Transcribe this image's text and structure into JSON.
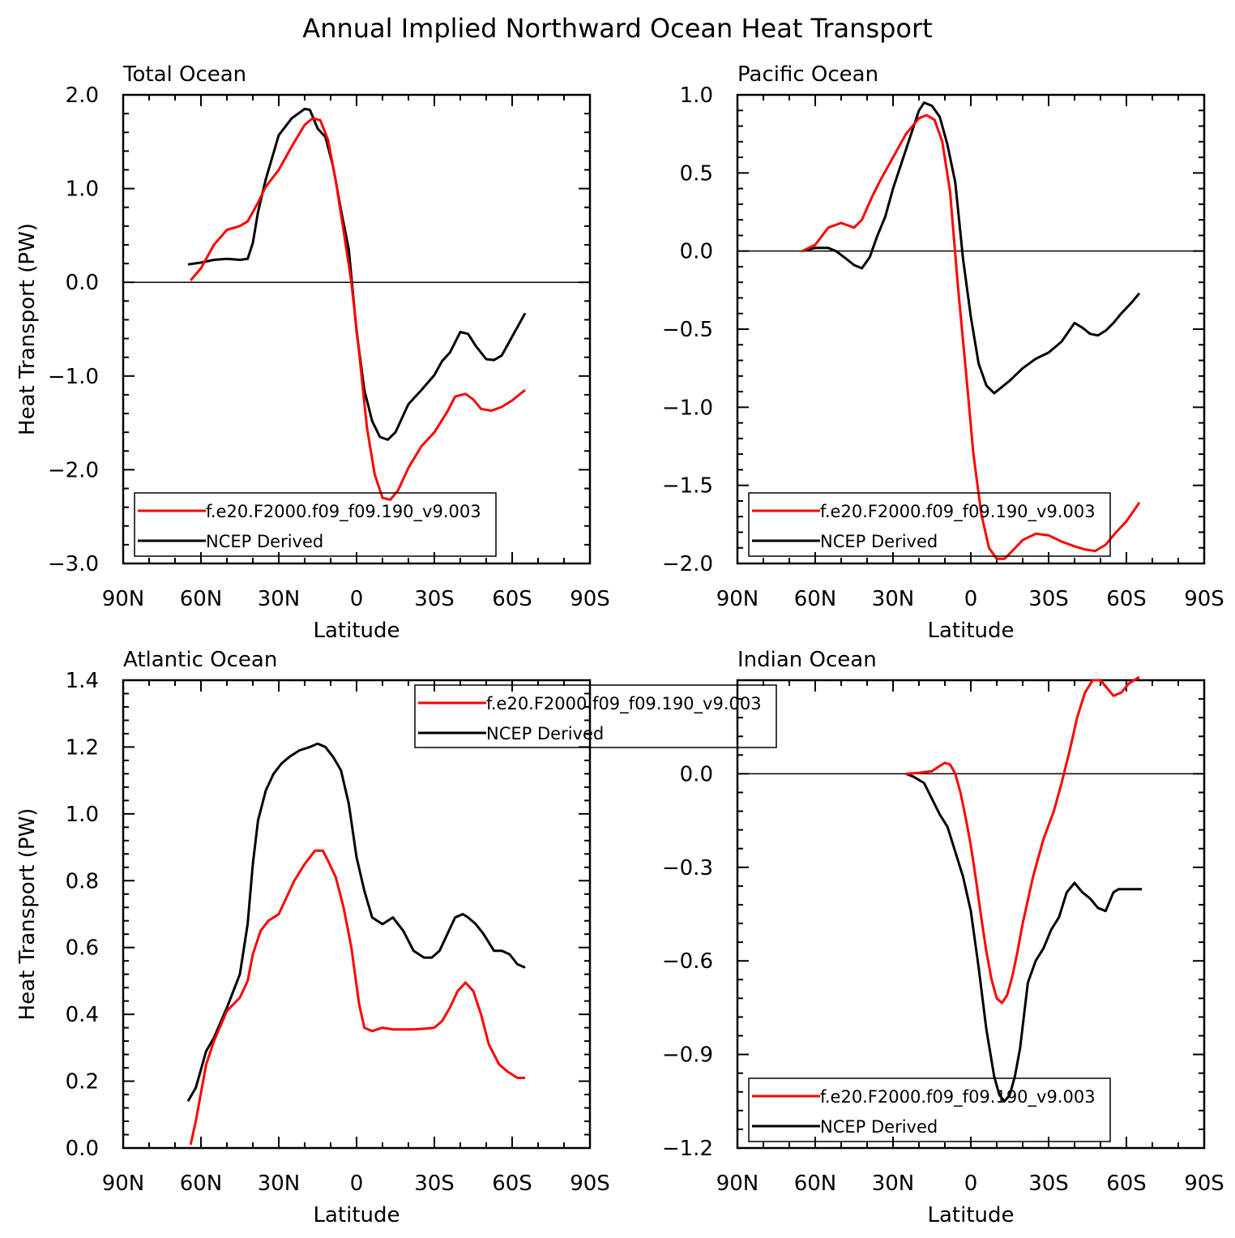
{
  "figure_title": "Annual Implied Northward Ocean Heat Transport",
  "colors": {
    "model": "#ff0000",
    "obs": "#000000"
  },
  "chart_data": [
    {
      "type": "line",
      "title": "Total Ocean",
      "xlabel": "Latitude",
      "ylabel": "Heat Transport (PW)",
      "xlim": [
        -90,
        90
      ],
      "ylim": [
        -3.0,
        2.0
      ],
      "x_tick_values": [
        -90,
        -60,
        -30,
        0,
        30,
        60,
        90
      ],
      "x_tick_labels": [
        "90N",
        "60N",
        "30N",
        "0",
        "30S",
        "60S",
        "90S"
      ],
      "y_tick_values": [
        -3.0,
        -2.0,
        -1.0,
        0.0,
        1.0,
        2.0
      ],
      "y_tick_labels": [
        "−3.0",
        "−2.0",
        "−1.0",
        "0.0",
        "1.0",
        "2.0"
      ],
      "zero_line": true,
      "legend": "bottom-left",
      "series": [
        {
          "name": "f.e20.F2000.f09_f09.190_v9.003",
          "color": "#ff0000",
          "x": [
            -64,
            -60,
            -55,
            -50,
            -45,
            -42,
            -38,
            -35,
            -30,
            -25,
            -20,
            -17,
            -14,
            -11,
            -8,
            -5,
            -2,
            1,
            4,
            7,
            10,
            13,
            16,
            20,
            25,
            30,
            35,
            38,
            42,
            45,
            48,
            52,
            56,
            60,
            65
          ],
          "y": [
            0.02,
            0.15,
            0.4,
            0.56,
            0.6,
            0.65,
            0.85,
            1.02,
            1.2,
            1.45,
            1.68,
            1.75,
            1.73,
            1.52,
            1.08,
            0.55,
            0.0,
            -0.75,
            -1.55,
            -2.05,
            -2.3,
            -2.32,
            -2.22,
            -1.98,
            -1.75,
            -1.6,
            -1.38,
            -1.22,
            -1.19,
            -1.25,
            -1.35,
            -1.37,
            -1.33,
            -1.26,
            -1.15
          ]
        },
        {
          "name": "NCEP Derived",
          "color": "#000000",
          "x": [
            -65,
            -60,
            -55,
            -50,
            -45,
            -42,
            -40,
            -38,
            -35,
            -30,
            -25,
            -20,
            -18,
            -15,
            -12,
            -9,
            -6,
            -3,
            0,
            3,
            6,
            9,
            12,
            15,
            20,
            25,
            30,
            33,
            36,
            40,
            43,
            46,
            50,
            53,
            56,
            59,
            62,
            65
          ],
          "y": [
            0.19,
            0.21,
            0.24,
            0.25,
            0.24,
            0.25,
            0.42,
            0.75,
            1.1,
            1.57,
            1.75,
            1.85,
            1.84,
            1.64,
            1.55,
            1.23,
            0.77,
            0.35,
            -0.52,
            -1.15,
            -1.48,
            -1.65,
            -1.68,
            -1.6,
            -1.3,
            -1.15,
            -0.99,
            -0.84,
            -0.75,
            -0.53,
            -0.55,
            -0.68,
            -0.82,
            -0.83,
            -0.78,
            -0.63,
            -0.48,
            -0.33
          ]
        }
      ]
    },
    {
      "type": "line",
      "title": "Pacific Ocean",
      "xlabel": "Latitude",
      "ylabel": "",
      "xlim": [
        -90,
        90
      ],
      "ylim": [
        -2.0,
        1.0
      ],
      "x_tick_values": [
        -90,
        -60,
        -30,
        0,
        30,
        60,
        90
      ],
      "x_tick_labels": [
        "90N",
        "60N",
        "30N",
        "0",
        "30S",
        "60S",
        "90S"
      ],
      "y_tick_values": [
        -2.0,
        -1.5,
        -1.0,
        -0.5,
        0.0,
        0.5,
        1.0
      ],
      "y_tick_labels": [
        "−2.0",
        "−1.5",
        "−1.0",
        "−0.5",
        "0.0",
        "0.5",
        "1.0"
      ],
      "zero_line": true,
      "legend": "bottom-left",
      "series": [
        {
          "name": "f.e20.F2000.f09_f09.190_v9.003",
          "color": "#ff0000",
          "x": [
            -65,
            -60,
            -55,
            -50,
            -45,
            -42,
            -38,
            -35,
            -30,
            -25,
            -20,
            -17,
            -14,
            -11,
            -8,
            -5,
            -2,
            1,
            4,
            7,
            10,
            13,
            16,
            20,
            25,
            30,
            35,
            40,
            44,
            48,
            52,
            56,
            60,
            65
          ],
          "y": [
            0.0,
            0.04,
            0.15,
            0.18,
            0.15,
            0.2,
            0.35,
            0.45,
            0.6,
            0.75,
            0.85,
            0.87,
            0.84,
            0.7,
            0.38,
            -0.22,
            -0.75,
            -1.3,
            -1.68,
            -1.9,
            -1.97,
            -1.97,
            -1.92,
            -1.85,
            -1.81,
            -1.82,
            -1.86,
            -1.89,
            -1.91,
            -1.92,
            -1.88,
            -1.8,
            -1.73,
            -1.61
          ]
        },
        {
          "name": "NCEP Derived",
          "color": "#000000",
          "x": [
            -65,
            -60,
            -55,
            -52,
            -48,
            -45,
            -42,
            -39,
            -36,
            -33,
            -30,
            -25,
            -20,
            -18,
            -15,
            -12,
            -9,
            -6,
            -3,
            0,
            3,
            6,
            9,
            12,
            15,
            20,
            25,
            30,
            35,
            40,
            43,
            46,
            49,
            52,
            55,
            58,
            62,
            65
          ],
          "y": [
            0.0,
            0.02,
            0.02,
            0.0,
            -0.05,
            -0.09,
            -0.11,
            -0.04,
            0.1,
            0.22,
            0.4,
            0.65,
            0.9,
            0.95,
            0.93,
            0.86,
            0.68,
            0.44,
            -0.05,
            -0.42,
            -0.72,
            -0.86,
            -0.91,
            -0.87,
            -0.83,
            -0.75,
            -0.69,
            -0.65,
            -0.58,
            -0.46,
            -0.49,
            -0.53,
            -0.54,
            -0.51,
            -0.46,
            -0.4,
            -0.33,
            -0.27
          ]
        }
      ]
    },
    {
      "type": "line",
      "title": "Atlantic Ocean",
      "xlabel": "Latitude",
      "ylabel": "Heat Transport (PW)",
      "xlim": [
        -90,
        90
      ],
      "ylim": [
        0.0,
        1.4
      ],
      "x_tick_values": [
        -90,
        -60,
        -30,
        0,
        30,
        60,
        90
      ],
      "x_tick_labels": [
        "90N",
        "60N",
        "30N",
        "0",
        "30S",
        "60S",
        "90S"
      ],
      "y_tick_values": [
        0.0,
        0.2,
        0.4,
        0.6,
        0.8,
        1.0,
        1.2,
        1.4
      ],
      "y_tick_labels": [
        "0.0",
        "0.2",
        "0.4",
        "0.6",
        "0.8",
        "1.0",
        "1.2",
        "1.4"
      ],
      "zero_line": false,
      "legend": "top-right",
      "series": [
        {
          "name": "f.e20.F2000.f09_f09.190_v9.003",
          "color": "#ff0000",
          "x": [
            -64,
            -62,
            -58,
            -55,
            -50,
            -45,
            -42,
            -40,
            -37,
            -34,
            -30,
            -27,
            -24,
            -20,
            -16,
            -13,
            -11,
            -8,
            -5,
            -2,
            1,
            3,
            6,
            10,
            14,
            18,
            22,
            26,
            30,
            33,
            36,
            39,
            42,
            45,
            48,
            51,
            55,
            58,
            62,
            65
          ],
          "y": [
            0.01,
            0.08,
            0.25,
            0.32,
            0.41,
            0.45,
            0.5,
            0.58,
            0.65,
            0.68,
            0.7,
            0.75,
            0.8,
            0.85,
            0.89,
            0.89,
            0.86,
            0.81,
            0.72,
            0.6,
            0.43,
            0.36,
            0.35,
            0.36,
            0.355,
            0.355,
            0.355,
            0.357,
            0.36,
            0.38,
            0.42,
            0.47,
            0.495,
            0.47,
            0.4,
            0.31,
            0.25,
            0.23,
            0.21,
            0.21
          ]
        },
        {
          "name": "NCEP Derived",
          "color": "#000000",
          "x": [
            -65,
            -62,
            -58,
            -55,
            -50,
            -45,
            -42,
            -40,
            -38,
            -35,
            -32,
            -29,
            -26,
            -22,
            -18,
            -15,
            -12,
            -9,
            -6,
            -3,
            0,
            3,
            6,
            10,
            14,
            18,
            22,
            26,
            29,
            32,
            35,
            38,
            41,
            43,
            46,
            49,
            53,
            56,
            59,
            62,
            65
          ],
          "y": [
            0.14,
            0.18,
            0.29,
            0.33,
            0.42,
            0.52,
            0.67,
            0.85,
            0.98,
            1.07,
            1.12,
            1.15,
            1.17,
            1.19,
            1.2,
            1.21,
            1.2,
            1.17,
            1.13,
            1.03,
            0.87,
            0.77,
            0.69,
            0.67,
            0.69,
            0.65,
            0.59,
            0.57,
            0.57,
            0.59,
            0.64,
            0.69,
            0.7,
            0.69,
            0.67,
            0.64,
            0.59,
            0.59,
            0.58,
            0.55,
            0.54
          ]
        }
      ]
    },
    {
      "type": "line",
      "title": "Indian Ocean",
      "xlabel": "Latitude",
      "ylabel": "",
      "xlim": [
        -90,
        90
      ],
      "ylim": [
        -1.2,
        0.3
      ],
      "x_tick_values": [
        -90,
        -60,
        -30,
        0,
        30,
        60,
        90
      ],
      "x_tick_labels": [
        "90N",
        "60N",
        "30N",
        "0",
        "30S",
        "60S",
        "90S"
      ],
      "y_tick_values": [
        -1.2,
        -0.9,
        -0.6,
        -0.3,
        0.0
      ],
      "y_tick_labels": [
        "−1.2",
        "−0.9",
        "−0.6",
        "−0.3",
        "0.0"
      ],
      "zero_line": true,
      "legend": "bottom-left",
      "series": [
        {
          "name": "f.e20.F2000.f09_f09.190_v9.003",
          "color": "#ff0000",
          "x": [
            -25,
            -20,
            -15,
            -12,
            -10,
            -8,
            -6,
            -4,
            -2,
            0,
            2,
            4,
            6,
            8,
            10,
            12,
            14,
            16,
            18,
            20,
            24,
            28,
            32,
            35,
            38,
            41,
            44,
            47,
            50,
            53,
            55,
            58,
            61,
            65
          ],
          "y": [
            0.0,
            0.003,
            0.008,
            0.025,
            0.035,
            0.03,
            0.0,
            -0.06,
            -0.14,
            -0.23,
            -0.34,
            -0.46,
            -0.57,
            -0.66,
            -0.72,
            -0.735,
            -0.71,
            -0.65,
            -0.57,
            -0.48,
            -0.33,
            -0.21,
            -0.12,
            -0.03,
            0.07,
            0.18,
            0.26,
            0.3,
            0.3,
            0.27,
            0.25,
            0.26,
            0.29,
            0.31
          ]
        },
        {
          "name": "NCEP Derived",
          "color": "#000000",
          "x": [
            -25,
            -22,
            -18,
            -15,
            -12,
            -9,
            -6,
            -3,
            0,
            3,
            6,
            9,
            11,
            13,
            15,
            17,
            19,
            22,
            25,
            28,
            31,
            34,
            37,
            40,
            43,
            46,
            49,
            52,
            55,
            57,
            60,
            63,
            66
          ],
          "y": [
            0.0,
            -0.01,
            -0.03,
            -0.08,
            -0.13,
            -0.17,
            -0.25,
            -0.33,
            -0.44,
            -0.62,
            -0.82,
            -0.97,
            -1.03,
            -1.05,
            -1.03,
            -0.97,
            -0.88,
            -0.67,
            -0.6,
            -0.56,
            -0.5,
            -0.46,
            -0.38,
            -0.35,
            -0.38,
            -0.4,
            -0.43,
            -0.44,
            -0.38,
            -0.37,
            -0.37,
            -0.37,
            -0.37
          ]
        }
      ]
    }
  ]
}
